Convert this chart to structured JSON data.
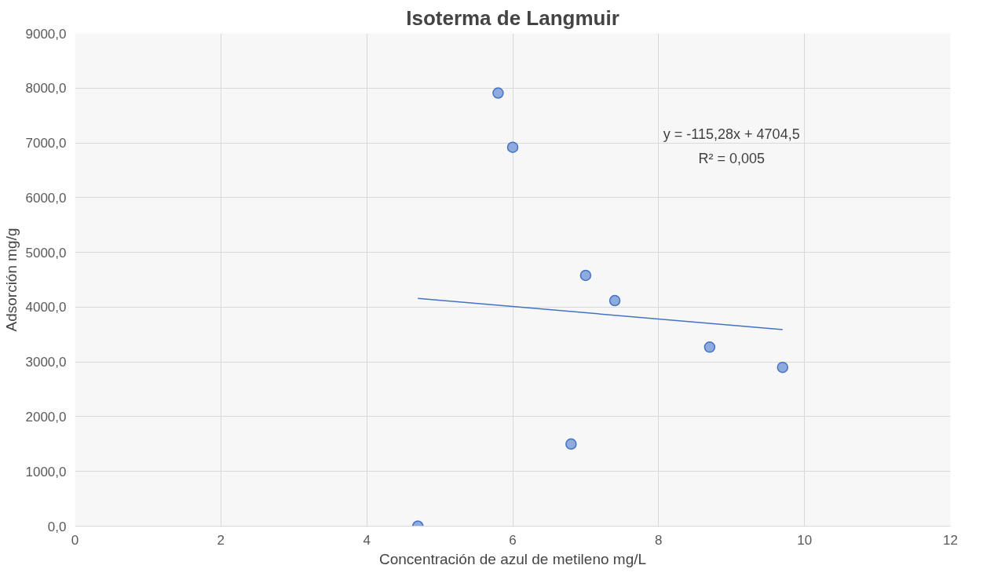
{
  "chart_data": {
    "type": "scatter",
    "title": "Isoterma de Langmuir",
    "xlabel": "Concentración de azul de metileno mg/L",
    "ylabel": "Adsorción mg/g",
    "series": [
      {
        "color": "#8faadc",
        "x": [
          4.7,
          5.8,
          6.0,
          6.8,
          7.0,
          7.4,
          8.7,
          9.7
        ],
        "values": [
          0,
          7910,
          6920,
          1500,
          4580,
          4120,
          3270,
          2900
        ]
      },
      {
        "type": "line",
        "marker": "none",
        "color": "#4472c4",
        "x": [
          4.7,
          9.7
        ],
        "values": [
          4160,
          3590
        ]
      }
    ],
    "annotations": [
      "y = -115,28x + 4704,5",
      "R² = 0,005"
    ],
    "xlim": [
      0,
      12
    ],
    "xticks": [
      0,
      2,
      4,
      6,
      8,
      10,
      12
    ],
    "ylim": [
      0,
      9000
    ],
    "yticks": [
      {
        "value": 0,
        "label": "0,0"
      },
      {
        "value": 1000,
        "label": "1000,0"
      },
      {
        "value": 2000,
        "label": "2000,0"
      },
      {
        "value": 3000,
        "label": "3000,0"
      },
      {
        "value": 4000,
        "label": "4000,0"
      },
      {
        "value": 5000,
        "label": "5000,0"
      },
      {
        "value": 6000,
        "label": "6000,0"
      },
      {
        "value": 7000,
        "label": "7000,0"
      },
      {
        "value": 8000,
        "label": "8000,0"
      },
      {
        "value": 9000,
        "label": "9000,0"
      }
    ],
    "grid": true,
    "marker": "circle"
  }
}
